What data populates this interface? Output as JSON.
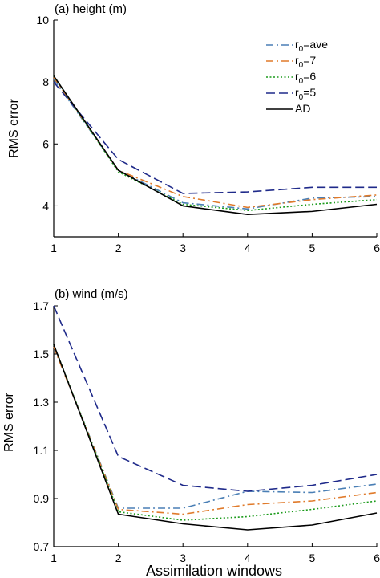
{
  "chart_data": [
    {
      "type": "line",
      "title": "(a) height (m)",
      "xlabel": "",
      "ylabel": "RMS error",
      "x": [
        1,
        2,
        3,
        4,
        5,
        6
      ],
      "xlim": [
        1,
        6
      ],
      "ylim": [
        3,
        10
      ],
      "xticks": [
        "1",
        "2",
        "3",
        "4",
        "5",
        "6"
      ],
      "yticks": [
        4,
        6,
        8,
        10
      ],
      "ytick_labels": [
        "4",
        "6",
        "8",
        "10"
      ],
      "legend": "top-right",
      "series": [
        {
          "name": "r0=ave",
          "label_base": "r",
          "label_sub": "0",
          "label_rest": "=ave",
          "color": "#4a7fb5",
          "dash": "dashdot",
          "values": [
            8.1,
            5.15,
            4.1,
            3.9,
            4.25,
            4.3
          ]
        },
        {
          "name": "r0=7",
          "label_base": "r",
          "label_sub": "0",
          "label_rest": "=7",
          "color": "#e07a2a",
          "dash": "dashdot",
          "values": [
            8.15,
            5.15,
            4.3,
            3.95,
            4.2,
            4.35
          ]
        },
        {
          "name": "r0=6",
          "label_base": "r",
          "label_sub": "0",
          "label_rest": "=6",
          "color": "#1a9a1a",
          "dash": "dotted",
          "values": [
            8.2,
            5.1,
            4.05,
            3.85,
            4.05,
            4.2
          ]
        },
        {
          "name": "r0=5",
          "label_base": "r",
          "label_sub": "0",
          "label_rest": "=5",
          "color": "#1f2a8a",
          "dash": "dashed",
          "values": [
            8.0,
            5.5,
            4.4,
            4.45,
            4.6,
            4.6
          ]
        },
        {
          "name": "AD",
          "label_base": "AD",
          "label_sub": "",
          "label_rest": "",
          "color": "#000000",
          "dash": "solid",
          "values": [
            8.2,
            5.15,
            4.0,
            3.72,
            3.82,
            4.05
          ]
        }
      ]
    },
    {
      "type": "line",
      "title": "(b) wind (m/s)",
      "xlabel": "Assimilation windows",
      "ylabel": "RMS error",
      "x": [
        1,
        2,
        3,
        4,
        5,
        6
      ],
      "xlim": [
        1,
        6
      ],
      "ylim": [
        0.7,
        1.7
      ],
      "xticks": [
        "1",
        "2",
        "3",
        "4",
        "5",
        "6"
      ],
      "yticks": [
        0.7,
        0.9,
        1.1,
        1.3,
        1.5,
        1.7
      ],
      "ytick_labels": [
        "0.7",
        "0.9",
        "1.1",
        "1.3",
        "1.5",
        "1.7"
      ],
      "series": [
        {
          "name": "r0=ave",
          "color": "#4a7fb5",
          "dash": "dashdot",
          "values": [
            1.53,
            0.86,
            0.86,
            0.93,
            0.925,
            0.96
          ]
        },
        {
          "name": "r0=7",
          "color": "#e07a2a",
          "dash": "dashdot",
          "values": [
            1.53,
            0.855,
            0.835,
            0.875,
            0.89,
            0.925
          ]
        },
        {
          "name": "r0=6",
          "color": "#1a9a1a",
          "dash": "dotted",
          "values": [
            1.54,
            0.845,
            0.81,
            0.825,
            0.855,
            0.89
          ]
        },
        {
          "name": "r0=5",
          "color": "#1f2a8a",
          "dash": "dashed",
          "values": [
            1.7,
            1.075,
            0.955,
            0.93,
            0.955,
            1.0
          ]
        },
        {
          "name": "AD",
          "color": "#000000",
          "dash": "solid",
          "values": [
            1.54,
            0.835,
            0.795,
            0.77,
            0.79,
            0.84
          ]
        }
      ]
    }
  ]
}
